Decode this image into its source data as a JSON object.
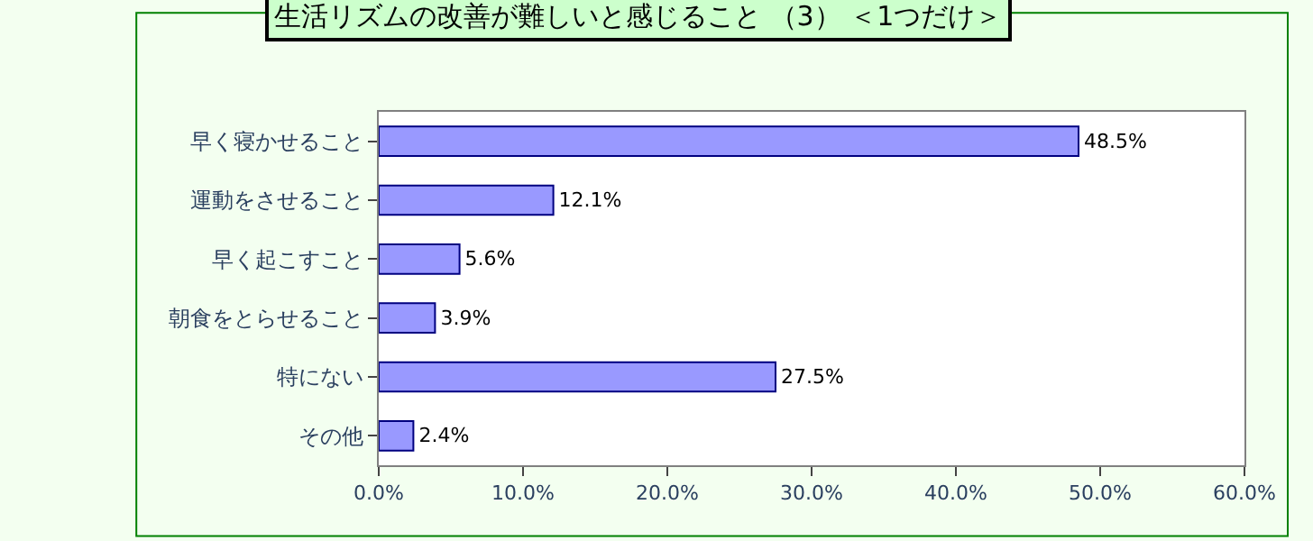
{
  "chart_data": {
    "type": "bar",
    "orientation": "horizontal",
    "title": "生活リズムの改善が難しいと感じること （3） ＜1つだけ＞",
    "categories": [
      "早く寝かせること",
      "運動をさせること",
      "早く起こすこと",
      "朝食をとらせること",
      "特にない",
      "その他"
    ],
    "values": [
      48.5,
      12.1,
      5.6,
      3.9,
      27.5,
      2.4
    ],
    "value_labels": [
      "48.5%",
      "12.1%",
      "5.6%",
      "3.9%",
      "27.5%",
      "2.4%"
    ],
    "color": "#9999ff",
    "xlim": [
      0,
      60
    ],
    "xticks": [
      {
        "value": 0,
        "label": "0.0%"
      },
      {
        "value": 10,
        "label": "10.0%"
      },
      {
        "value": 20,
        "label": "20.0%"
      },
      {
        "value": 30,
        "label": "30.0%"
      },
      {
        "value": 40,
        "label": "40.0%"
      },
      {
        "value": 50,
        "label": "50.0%"
      },
      {
        "value": 60,
        "label": "60.0%"
      }
    ],
    "grid": false,
    "legend": false
  }
}
